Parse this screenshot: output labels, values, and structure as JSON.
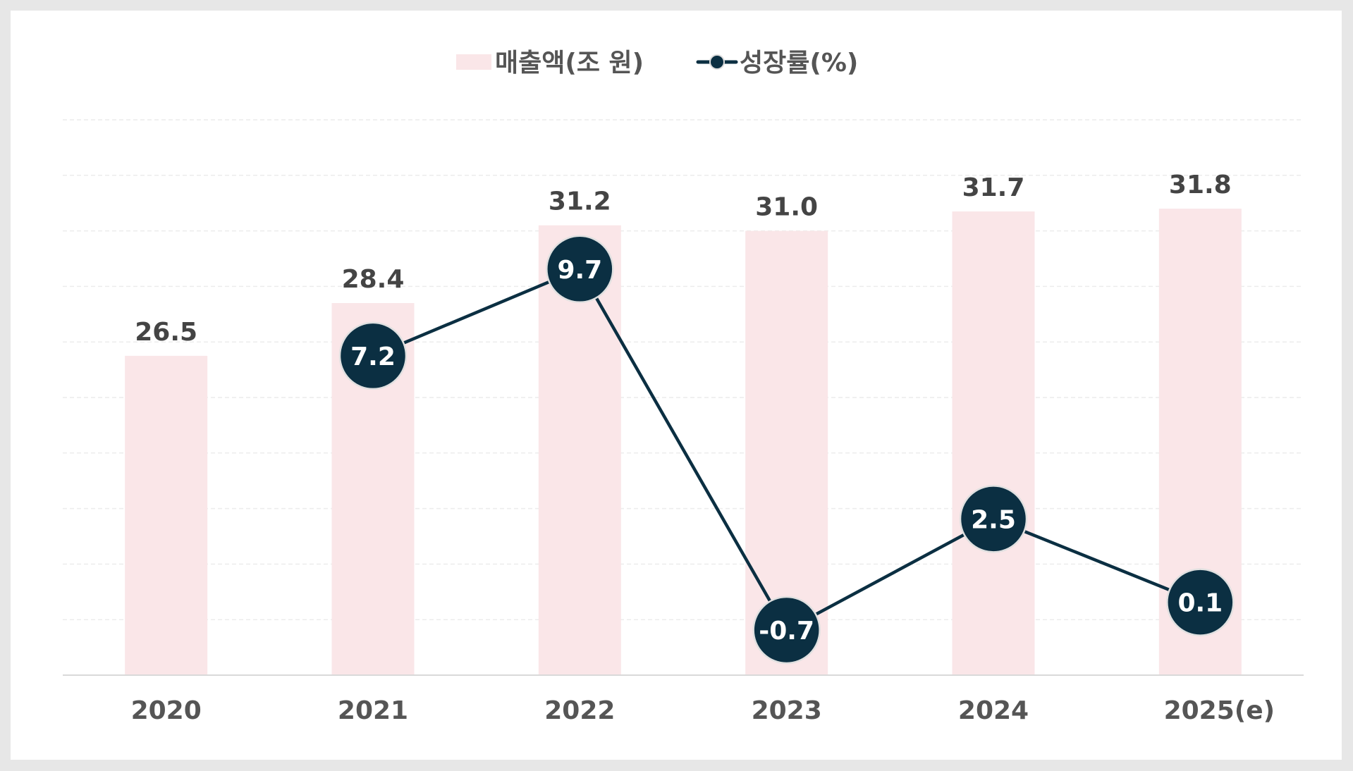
{
  "chart_data": {
    "type": "bar+line",
    "categories": [
      "2020",
      "2021",
      "2022",
      "2023",
      "2024",
      "2025(e)"
    ],
    "series": [
      {
        "name": "매출액(조 원)",
        "type": "bar",
        "axis": "left",
        "values": [
          26.5,
          28.4,
          31.2,
          31.0,
          31.7,
          31.8
        ],
        "labels": [
          "26.5",
          "28.4",
          "31.2",
          "31.0",
          "31.7",
          "31.8"
        ],
        "color": "#fae6e8"
      },
      {
        "name": "성장률(%)",
        "type": "line",
        "axis": "right",
        "values": [
          null,
          7.2,
          9.7,
          -0.7,
          2.5,
          0.1
        ],
        "labels": [
          "",
          "7.2",
          "9.7",
          "-0.7",
          "2.5",
          "0.1"
        ],
        "color": "#0b2f42"
      }
    ],
    "ylim_left": [
      15,
      35
    ],
    "ylim_right": [
      -2,
      14
    ],
    "grid": true,
    "legend_position": "top-center",
    "axis_tick_labels_shown": false
  }
}
